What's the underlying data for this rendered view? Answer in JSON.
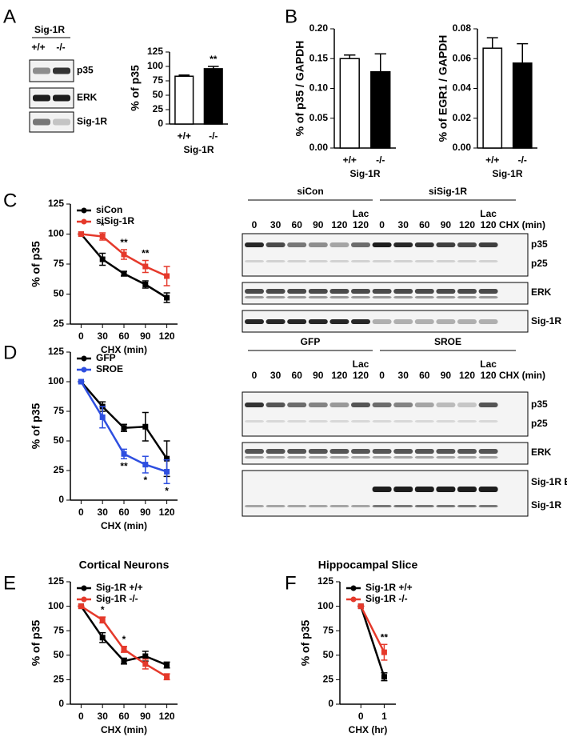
{
  "panels": [
    "A",
    "B",
    "C",
    "D",
    "E",
    "F"
  ],
  "blots": {
    "A": {
      "header": "Sig-1R",
      "genotypes": [
        "+/+",
        "-/-"
      ],
      "proteins": [
        "p35",
        "ERK",
        "Sig-1R"
      ]
    },
    "C": {
      "groups": [
        "siCon",
        "siSig-1R"
      ],
      "lanes": [
        "0",
        "30",
        "60",
        "90",
        "120",
        "120",
        "0",
        "30",
        "60",
        "90",
        "120",
        "120"
      ],
      "lac": [
        "Lac",
        "Lac"
      ],
      "axis": "CHX (min)",
      "proteins": [
        "p35",
        "p25",
        "ERK",
        "Sig-1R"
      ]
    },
    "D": {
      "groups": [
        "GFP",
        "SROE"
      ],
      "lanes": [
        "0",
        "30",
        "60",
        "90",
        "120",
        "120",
        "0",
        "30",
        "60",
        "90",
        "120",
        "120"
      ],
      "lac": [
        "Lac",
        "Lac"
      ],
      "axis": "CHX (min)",
      "proteins": [
        "p35",
        "p25",
        "ERK",
        "Sig-1R EYFP",
        "Sig-1R"
      ]
    }
  },
  "chart_data": [
    {
      "type": "bar",
      "ylabel": "% of p35",
      "xlabel": "Sig-1R",
      "categories": [
        "+/+",
        "-/-"
      ],
      "values": [
        83,
        96
      ],
      "errors": [
        2,
        4
      ],
      "colors": [
        "#ffffff",
        "#000000"
      ],
      "annotations": [
        null,
        "**"
      ],
      "ylim": [
        0,
        125
      ],
      "yticks": [
        0,
        25,
        50,
        75,
        100,
        125
      ]
    },
    {
      "type": "bar",
      "ylabel": "% of p35 / GAPDH",
      "xlabel": "Sig-1R",
      "categories": [
        "+/+",
        "-/-"
      ],
      "values": [
        0.15,
        0.128
      ],
      "errors": [
        0.006,
        0.03
      ],
      "colors": [
        "#ffffff",
        "#000000"
      ],
      "ylim": [
        0,
        0.2
      ],
      "yticks": [
        {
          "value": 0,
          "label": "0.00"
        },
        {
          "value": 0.05,
          "label": "0.05"
        },
        {
          "value": 0.1,
          "label": "0.10"
        },
        {
          "value": 0.15,
          "label": "0.15"
        },
        {
          "value": 0.2,
          "label": "0.20"
        }
      ]
    },
    {
      "type": "bar",
      "ylabel": "% of EGR1 / GAPDH",
      "xlabel": "Sig-1R",
      "categories": [
        "+/+",
        "-/-"
      ],
      "values": [
        0.067,
        0.057
      ],
      "errors": [
        0.007,
        0.013
      ],
      "colors": [
        "#ffffff",
        "#000000"
      ],
      "ylim": [
        0,
        0.08
      ],
      "yticks": [
        {
          "value": 0,
          "label": "0.00"
        },
        0.02,
        0.04,
        0.06,
        {
          "value": 0.08,
          "label": "0.08"
        }
      ]
    },
    {
      "type": "line",
      "ylabel": "% of p35",
      "xlabel": "CHX (min)",
      "x": [
        0,
        30,
        60,
        90,
        120
      ],
      "xlim": [
        -15,
        135
      ],
      "xticks": [
        0,
        30,
        60,
        90,
        120
      ],
      "ylim": [
        25,
        125
      ],
      "yticks": [
        25,
        50,
        75,
        100,
        125
      ],
      "legend": "upper left",
      "series": [
        {
          "name": "siCon",
          "color": "#000000",
          "values": [
            100,
            79,
            67,
            58,
            47
          ],
          "errors": [
            0,
            5,
            2,
            3,
            4
          ]
        },
        {
          "name": "siSig-1R",
          "color": "#e5392b",
          "values": [
            100,
            98,
            83,
            73,
            65
          ],
          "errors": [
            0,
            3,
            4,
            5,
            8
          ]
        }
      ],
      "annotations": [
        null,
        "*",
        "**",
        "**",
        null
      ],
      "annotation_position": "above"
    },
    {
      "type": "line",
      "ylabel": "% of p35",
      "xlabel": "CHX (min)",
      "x": [
        0,
        30,
        60,
        90,
        120
      ],
      "xlim": [
        -15,
        135
      ],
      "xticks": [
        0,
        30,
        60,
        90,
        120
      ],
      "ylim": [
        0,
        125
      ],
      "yticks": [
        0,
        25,
        50,
        75,
        100,
        125
      ],
      "legend": "upper left",
      "series": [
        {
          "name": "GFP",
          "color": "#000000",
          "values": [
            100,
            79,
            61,
            62,
            35
          ],
          "errors": [
            0,
            4,
            3,
            12,
            15
          ]
        },
        {
          "name": "SROE",
          "color": "#2e4fe0",
          "values": [
            100,
            70,
            39,
            30,
            24
          ],
          "errors": [
            0,
            9,
            4,
            7,
            10
          ]
        }
      ],
      "annotations": [
        null,
        null,
        "**",
        "*",
        "*"
      ],
      "annotation_position": "below"
    },
    {
      "type": "line",
      "title": "Cortical Neurons",
      "ylabel": "% of p35",
      "xlabel": "CHX (min)",
      "x": [
        0,
        30,
        60,
        90,
        120
      ],
      "xlim": [
        -15,
        135
      ],
      "xticks": [
        0,
        30,
        60,
        90,
        120
      ],
      "ylim": [
        0,
        125
      ],
      "yticks": [
        0,
        25,
        50,
        75,
        100,
        125
      ],
      "legend": "upper left",
      "series": [
        {
          "name": "Sig-1R +/+",
          "color": "#000000",
          "values": [
            100,
            68,
            44,
            49,
            40
          ],
          "errors": [
            0,
            5,
            3,
            5,
            3
          ]
        },
        {
          "name": "Sig-1R -/-",
          "color": "#e5392b",
          "values": [
            100,
            86,
            56,
            41,
            28
          ],
          "errors": [
            0,
            3,
            3,
            5,
            3
          ]
        }
      ],
      "annotations": [
        null,
        "*",
        "*",
        null,
        null
      ],
      "annotation_position": "above"
    },
    {
      "type": "line",
      "title": "Hippocampal Slice",
      "ylabel": "% of p35",
      "xlabel": "CHX (hr)",
      "x": [
        0,
        1
      ],
      "xlim": [
        -0.9,
        1.5
      ],
      "xticks": [
        0,
        1
      ],
      "ylim": [
        0,
        125
      ],
      "yticks": [
        0,
        25,
        50,
        75,
        100,
        125
      ],
      "legend": "upper left",
      "series": [
        {
          "name": "Sig-1R +/+",
          "color": "#000000",
          "values": [
            100,
            28
          ],
          "errors": [
            0,
            4
          ]
        },
        {
          "name": "Sig-1R -/-",
          "color": "#e5392b",
          "values": [
            100,
            53
          ],
          "errors": [
            0,
            8
          ]
        }
      ],
      "annotations": [
        null,
        "**"
      ],
      "annotation_position": "above"
    }
  ]
}
